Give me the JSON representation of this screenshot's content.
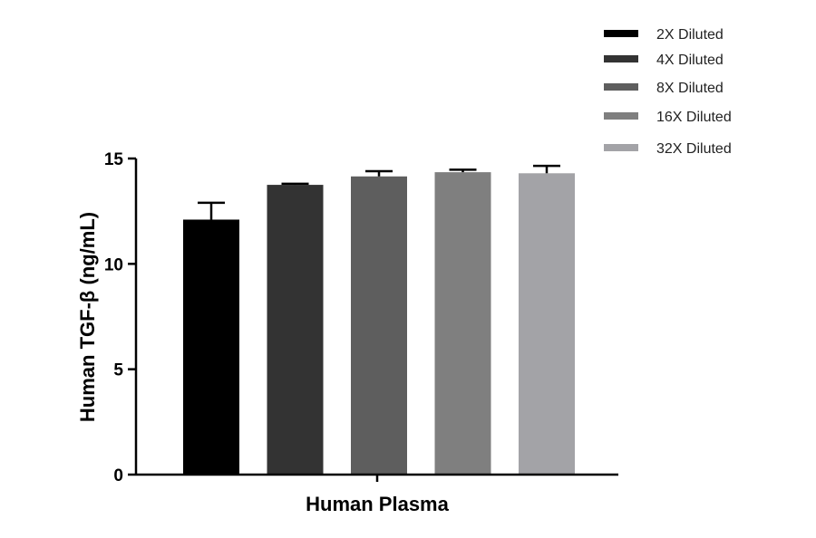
{
  "chart_data": {
    "type": "bar",
    "categories": [
      "Human Plasma"
    ],
    "series": [
      {
        "name": "2X Diluted",
        "value": 12.1,
        "error": 0.8,
        "color": "#000000"
      },
      {
        "name": "4X Diluted",
        "value": 13.75,
        "error": 0.05,
        "color": "#333333"
      },
      {
        "name": "8X Diluted",
        "value": 14.15,
        "error": 0.25,
        "color": "#5e5e5e"
      },
      {
        "name": "16X Diluted",
        "value": 14.35,
        "error": 0.12,
        "color": "#7f7f7f"
      },
      {
        "name": "32X Diluted",
        "value": 14.3,
        "error": 0.35,
        "color": "#a3a3a7"
      }
    ],
    "xlabel": "Human Plasma",
    "ylabel": "Human TGF-β (ng/mL)",
    "ylim": [
      0,
      15
    ],
    "yticks": [
      "0",
      "5",
      "10",
      "15"
    ],
    "legend_position": "top-right",
    "grid": false
  }
}
